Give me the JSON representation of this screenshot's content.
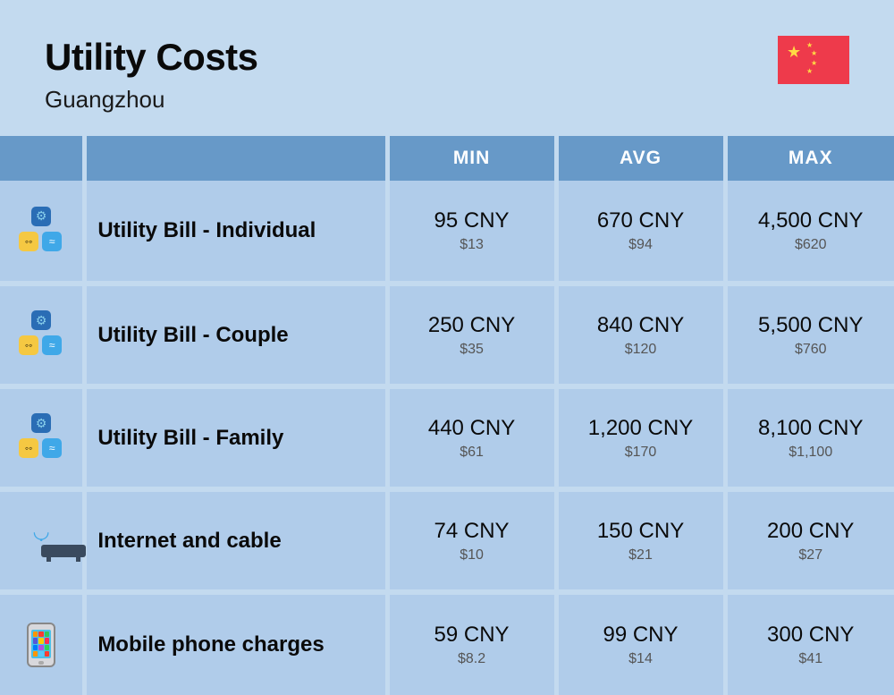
{
  "header": {
    "title": "Utility Costs",
    "subtitle": "Guangzhou"
  },
  "columns": {
    "min": "MIN",
    "avg": "AVG",
    "max": "MAX"
  },
  "rows": [
    {
      "icon": "utility",
      "label": "Utility Bill - Individual",
      "min_cny": "95 CNY",
      "min_usd": "$13",
      "avg_cny": "670 CNY",
      "avg_usd": "$94",
      "max_cny": "4,500 CNY",
      "max_usd": "$620"
    },
    {
      "icon": "utility",
      "label": "Utility Bill - Couple",
      "min_cny": "250 CNY",
      "min_usd": "$35",
      "avg_cny": "840 CNY",
      "avg_usd": "$120",
      "max_cny": "5,500 CNY",
      "max_usd": "$760"
    },
    {
      "icon": "utility",
      "label": "Utility Bill - Family",
      "min_cny": "440 CNY",
      "min_usd": "$61",
      "avg_cny": "1,200 CNY",
      "avg_usd": "$170",
      "max_cny": "8,100 CNY",
      "max_usd": "$1,100"
    },
    {
      "icon": "router",
      "label": "Internet and cable",
      "min_cny": "74 CNY",
      "min_usd": "$10",
      "avg_cny": "150 CNY",
      "avg_usd": "$21",
      "max_cny": "200 CNY",
      "max_usd": "$27"
    },
    {
      "icon": "phone",
      "label": "Mobile phone charges",
      "min_cny": "59 CNY",
      "min_usd": "$8.2",
      "avg_cny": "99 CNY",
      "avg_usd": "$14",
      "max_cny": "300 CNY",
      "max_usd": "$41"
    }
  ],
  "colors": {
    "page_background": "#c3daef",
    "header_cell": "#6799c8",
    "body_cell": "#b0ccea",
    "text_main": "#0a0a0a",
    "text_sub": "#555555",
    "flag_bg": "#ee3a4b",
    "flag_star": "#ffda44"
  },
  "phone_app_colors": [
    "#ff9500",
    "#ff3b30",
    "#34c759",
    "#5856d6",
    "#ffcc00",
    "#ff2d55",
    "#007aff",
    "#af52de",
    "#30d158",
    "#ff9500",
    "#5ac8fa",
    "#ff3b30"
  ]
}
